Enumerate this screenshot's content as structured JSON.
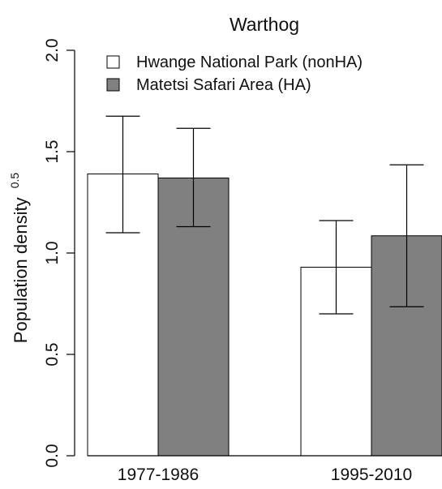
{
  "chart_data": {
    "type": "bar",
    "title": "Warthog",
    "xlabel": "",
    "ylabel": "Population density",
    "ylabel_superscript": "0.5",
    "categories": [
      "1977-1986",
      "1995-2010"
    ],
    "ylim": [
      0,
      2.0
    ],
    "yticks": [
      "0.0",
      "0.5",
      "1.0",
      "1.5",
      "2.0"
    ],
    "grid": false,
    "legend_position": "top-left",
    "series": [
      {
        "name": "Hwange National Park (nonHA)",
        "color": "#ffffff",
        "values": [
          1.39,
          0.93
        ],
        "err_low": [
          1.1,
          0.7
        ],
        "err_high": [
          1.675,
          1.16
        ]
      },
      {
        "name": "Matetsi Safari Area (HA)",
        "color": "#808080",
        "values": [
          1.37,
          1.085
        ],
        "err_low": [
          1.13,
          0.735
        ],
        "err_high": [
          1.615,
          1.435
        ]
      }
    ]
  }
}
